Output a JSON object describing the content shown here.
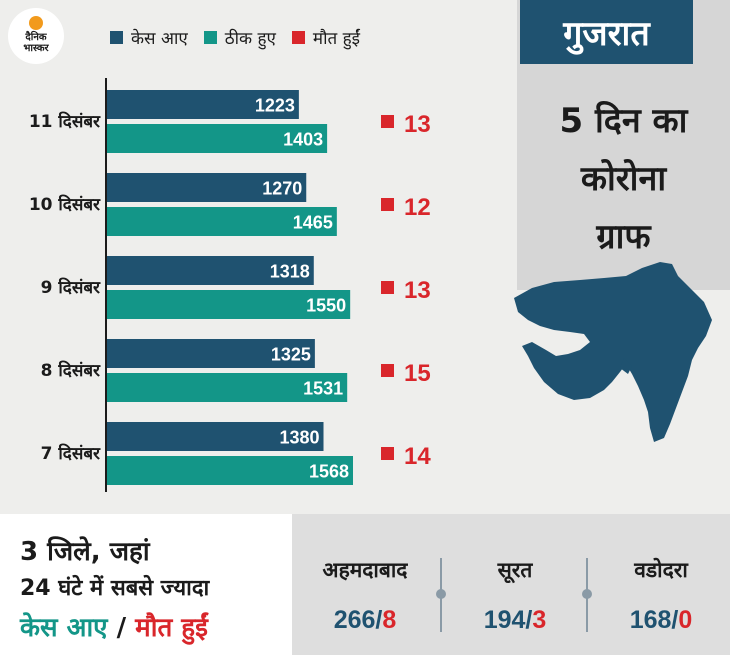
{
  "logo": {
    "line1": "दैनिक",
    "line2": "भास्कर"
  },
  "chart_data": {
    "type": "bar",
    "orientation": "horizontal",
    "categories": [
      "11 दिसंबर",
      "10 दिसंबर",
      "9 दिसंबर",
      "8 दिसंबर",
      "7 दिसंबर"
    ],
    "series": [
      {
        "name": "केस आए",
        "color": "#1f5270",
        "values": [
          1223,
          1270,
          1318,
          1325,
          1380
        ]
      },
      {
        "name": "ठीक हुए",
        "color": "#139688",
        "values": [
          1403,
          1465,
          1550,
          1531,
          1568
        ]
      },
      {
        "name": "मौत हुईं",
        "color": "#d9262b",
        "values": [
          13,
          12,
          13,
          15,
          14
        ]
      }
    ],
    "xlim": [
      0,
      1568
    ],
    "grid": false
  },
  "side": {
    "state": "गुजरात",
    "title_line1": "5 दिन का",
    "title_line2": "कोरोना",
    "title_line3": "ग्राफ",
    "map_icon": "gujarat-map"
  },
  "bottom": {
    "heading_line1": "3 जिले, जहां",
    "heading_line2": "24 घंटे में सबसे ज्यादा",
    "heading_cases": "केस आए",
    "heading_sep": " / ",
    "heading_deaths": "मौत हुईं",
    "cities": [
      {
        "name": "अहमदाबाद",
        "cases": "266",
        "sep": "/",
        "deaths": "8"
      },
      {
        "name": "सूरत",
        "cases": "194",
        "sep": "/",
        "deaths": "3"
      },
      {
        "name": "वडोदरा",
        "cases": "168",
        "sep": "/",
        "deaths": "0"
      }
    ]
  },
  "colors": {
    "navy": "#1f5270",
    "teal": "#139688",
    "red": "#d9262b"
  }
}
